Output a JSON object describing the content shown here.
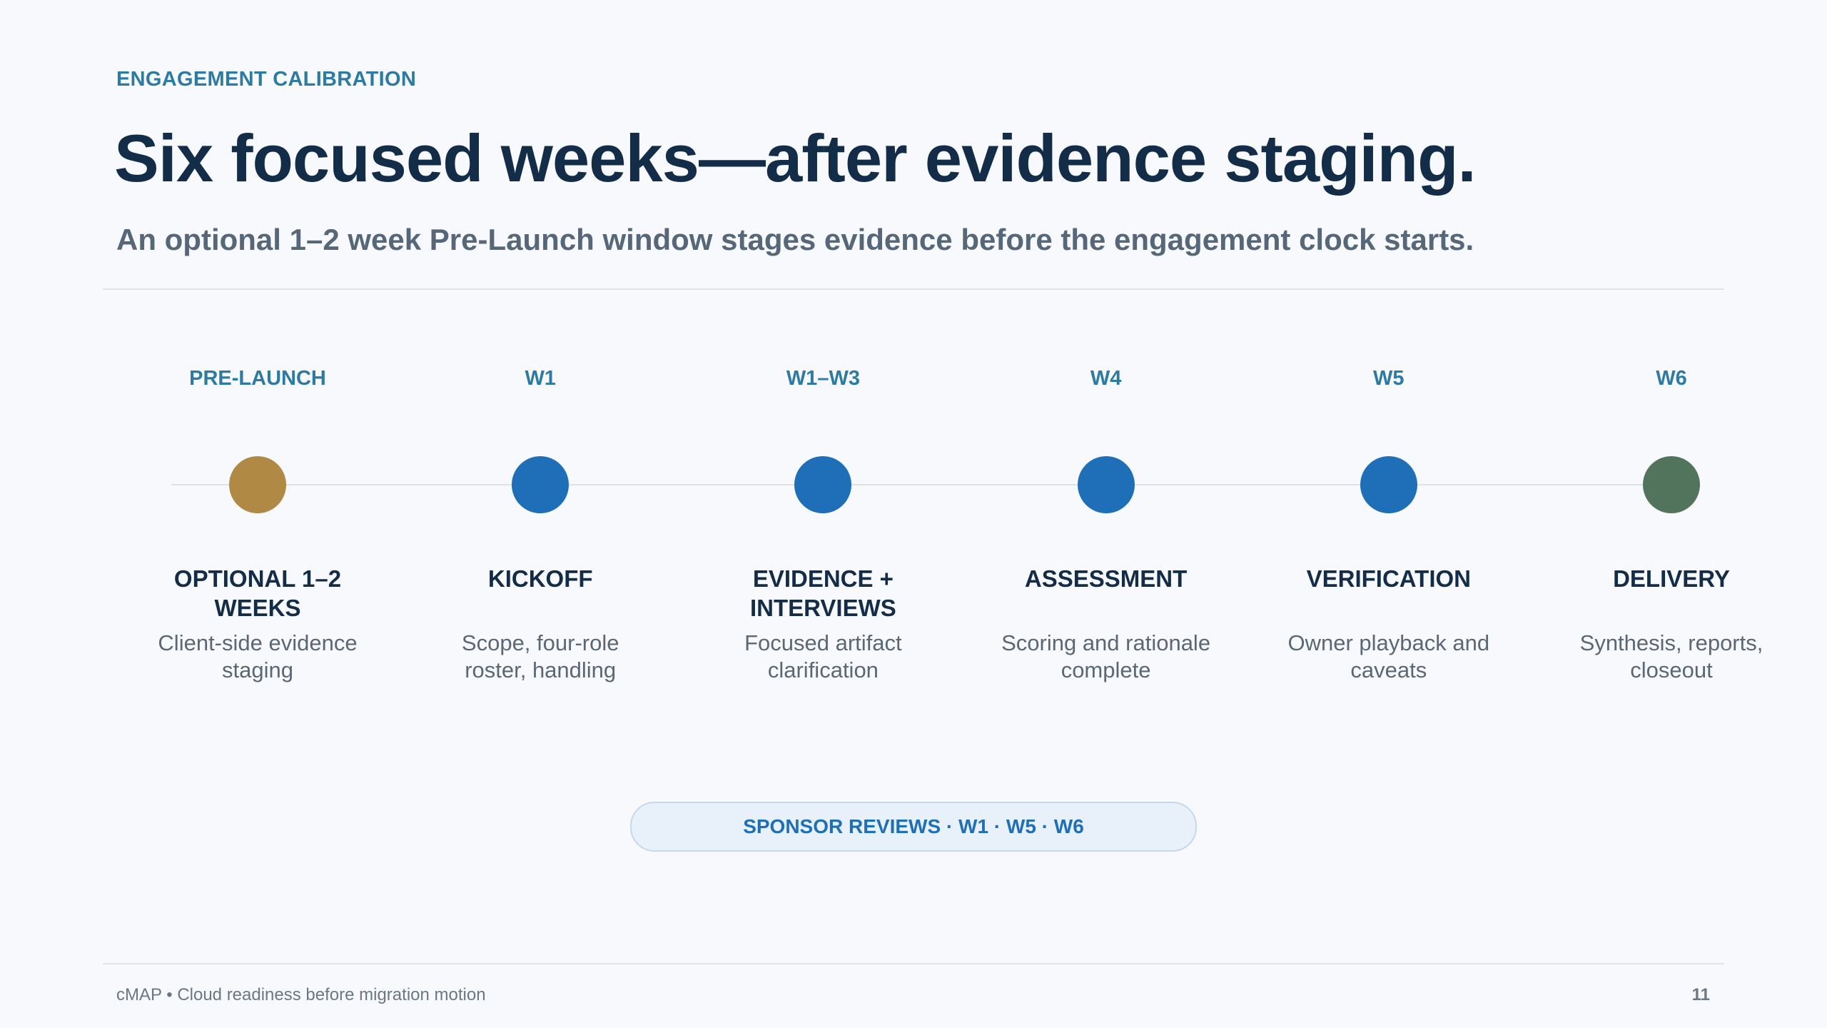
{
  "eyebrow": "ENGAGEMENT CALIBRATION",
  "title": "Six focused weeks—after evidence staging.",
  "subtitle": "An optional 1–2 week Pre-Launch window stages evidence before the engagement clock starts.",
  "milestones": [
    {
      "week": "PRE-LAUNCH",
      "title": "OPTIONAL 1–2 WEEKS",
      "description": "Client-side evidence staging",
      "color": "#b08a45"
    },
    {
      "week": "W1",
      "title": "KICKOFF",
      "description": "Scope, four-role roster, handling",
      "color": "#1f6fb8"
    },
    {
      "week": "W1–W3",
      "title": "EVIDENCE + INTERVIEWS",
      "description": "Focused artifact clarification",
      "color": "#1f6fb8"
    },
    {
      "week": "W4",
      "title": "ASSESSMENT",
      "description": "Scoring and rationale complete",
      "color": "#1f6fb8"
    },
    {
      "week": "W5",
      "title": "VERIFICATION",
      "description": "Owner playback and caveats",
      "color": "#1f6fb8"
    },
    {
      "week": "W6",
      "title": "DELIVERY",
      "description": "Synthesis, reports, closeout",
      "color": "#52735c"
    }
  ],
  "sponsor_note": "SPONSOR REVIEWS · W1 · W5 · W6",
  "footer": {
    "text": "cMAP • Cloud readiness before migration motion",
    "page": "11"
  }
}
